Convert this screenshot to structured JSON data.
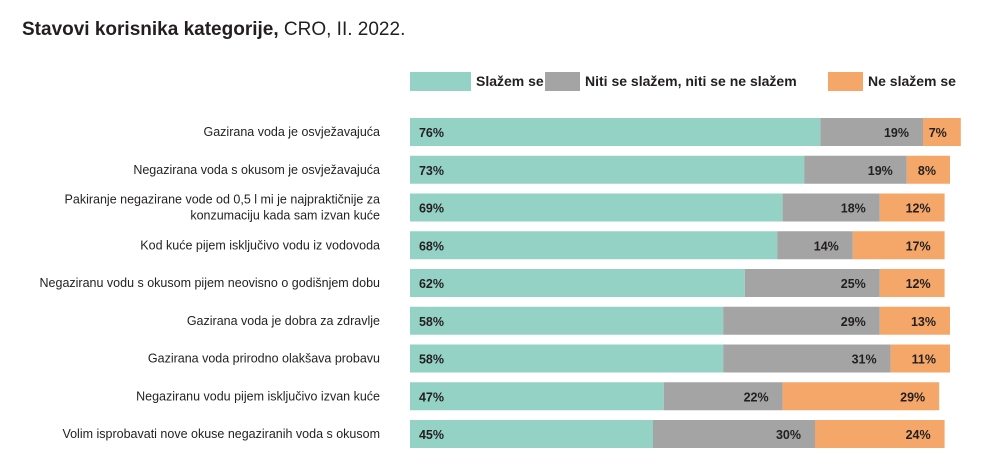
{
  "title": {
    "bold": "Stavovi korisnika kategorije,",
    "normal": "CRO, II. 2022."
  },
  "colors": {
    "agree": "#95d2c6",
    "neutral": "#a3a4a3",
    "disagree": "#f5a76a"
  },
  "chart_data": {
    "type": "bar",
    "orientation": "horizontal",
    "stacked": true,
    "title": "Stavovi korisnika kategorije, CRO, II. 2022.",
    "legend_position": "top-right",
    "grid": false,
    "xlim": [
      0,
      100
    ],
    "unit": "%",
    "categories": [
      [
        "Gazirana voda je osvježavajuća"
      ],
      [
        "Negazirana voda s okusom je osvježavajuća"
      ],
      [
        "Pakiranje negazirane vode od 0,5 l mi je najpraktičnije za",
        "konzumaciju kada sam izvan kuće"
      ],
      [
        "Kod kuće pijem isključivo vodu iz vodovoda"
      ],
      [
        "Negaziranu vodu s okusom pijem neovisno o godišnjem dobu"
      ],
      [
        "Gazirana voda je dobra za zdravlje"
      ],
      [
        "Gazirana voda prirodno olakšava probavu"
      ],
      [
        "Negaziranu vodu pijem isključivo izvan kuće"
      ],
      [
        "Volim isprobavati nove okuse negaziranih voda s okusom"
      ]
    ],
    "series": [
      {
        "name": "Slažem se",
        "key": "agree",
        "values": [
          76,
          73,
          69,
          68,
          62,
          58,
          58,
          47,
          45
        ]
      },
      {
        "name": "Niti se slažem, niti se ne slažem",
        "key": "neutral",
        "values": [
          19,
          19,
          18,
          14,
          25,
          29,
          31,
          22,
          30
        ]
      },
      {
        "name": "Ne slažem se",
        "key": "disagree",
        "values": [
          7,
          8,
          12,
          17,
          12,
          13,
          11,
          29,
          24
        ]
      }
    ]
  }
}
